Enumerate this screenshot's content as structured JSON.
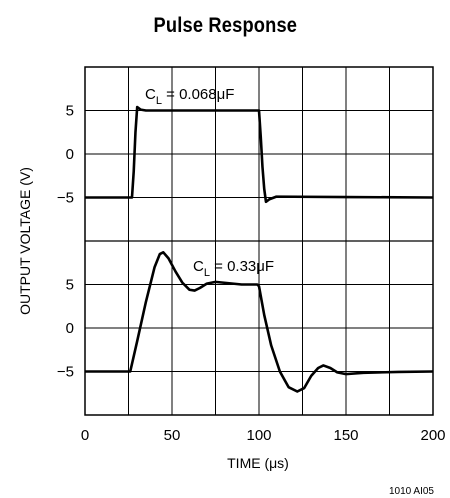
{
  "chart_data": {
    "type": "line",
    "title": "Pulse Response",
    "xlabel": "TIME (μs)",
    "ylabel": "OUTPUT VOLTAGE (V)",
    "footer": "1010 AI05",
    "xlim": [
      0,
      200
    ],
    "x_ticks": [
      "0",
      "50",
      "100",
      "150",
      "200"
    ],
    "grid": true,
    "panels": [
      {
        "ylim": [
          -10,
          10
        ],
        "y_ticks": [
          {
            "value": 5,
            "label": "5"
          },
          {
            "value": 0,
            "label": "0"
          },
          {
            "value": -5,
            "label": "−5"
          }
        ],
        "annotation": {
          "main": "C",
          "sub": "L",
          "rest": " = 0.068μF"
        },
        "series": [
          {
            "points": [
              [
                0,
                -5
              ],
              [
                27,
                -5
              ],
              [
                28,
                -2
              ],
              [
                29,
                2.5
              ],
              [
                30,
                5.4
              ],
              [
                32,
                5.1
              ],
              [
                35,
                5
              ],
              [
                60,
                5
              ],
              [
                100,
                5
              ],
              [
                101,
                2
              ],
              [
                102,
                -1.5
              ],
              [
                103,
                -4
              ],
              [
                104,
                -5.5
              ],
              [
                106,
                -5.2
              ],
              [
                110,
                -4.9
              ],
              [
                150,
                -4.95
              ],
              [
                200,
                -5
              ]
            ]
          }
        ]
      },
      {
        "ylim": [
          -10,
          10
        ],
        "y_ticks": [
          {
            "value": 5,
            "label": "5"
          },
          {
            "value": 0,
            "label": "0"
          },
          {
            "value": -5,
            "label": "−5"
          }
        ],
        "annotation": {
          "main": "C",
          "sub": "L",
          "rest": " = 0.33μF"
        },
        "series": [
          {
            "points": [
              [
                0,
                -5
              ],
              [
                26,
                -5
              ],
              [
                30,
                -1.5
              ],
              [
                35,
                3
              ],
              [
                40,
                7
              ],
              [
                43,
                8.5
              ],
              [
                45,
                8.7
              ],
              [
                48,
                8
              ],
              [
                52,
                6.5
              ],
              [
                56,
                5.2
              ],
              [
                60,
                4.4
              ],
              [
                63,
                4.3
              ],
              [
                66,
                4.6
              ],
              [
                70,
                5.1
              ],
              [
                75,
                5.3
              ],
              [
                80,
                5.2
              ],
              [
                90,
                5
              ],
              [
                99,
                5
              ],
              [
                100,
                4.8
              ],
              [
                103,
                1.5
              ],
              [
                107,
                -2
              ],
              [
                112,
                -5
              ],
              [
                117,
                -6.8
              ],
              [
                122,
                -7.3
              ],
              [
                126,
                -6.9
              ],
              [
                130,
                -5.5
              ],
              [
                134,
                -4.6
              ],
              [
                137,
                -4.3
              ],
              [
                141,
                -4.6
              ],
              [
                145,
                -5.1
              ],
              [
                150,
                -5.3
              ],
              [
                160,
                -5.15
              ],
              [
                180,
                -5.05
              ],
              [
                200,
                -5
              ]
            ]
          }
        ]
      }
    ]
  }
}
